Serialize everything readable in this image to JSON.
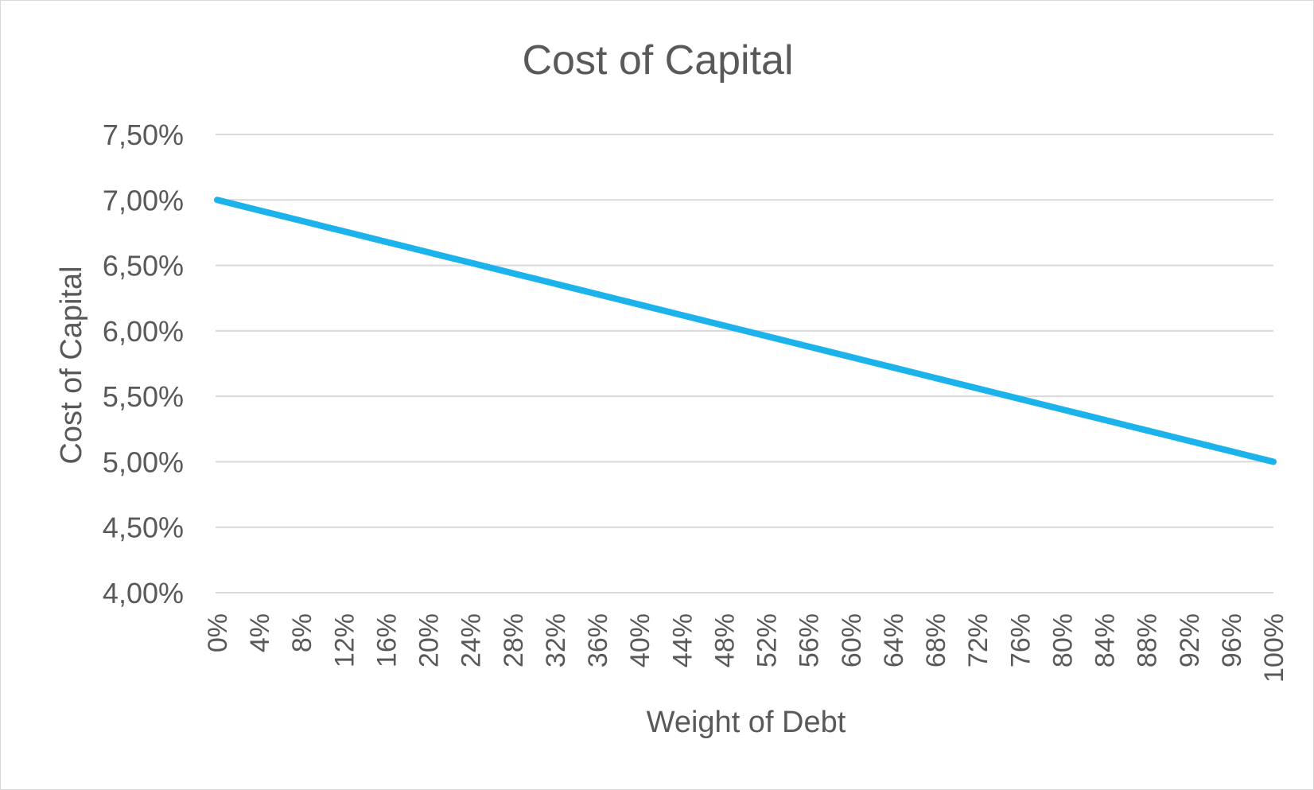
{
  "chart_data": {
    "type": "line",
    "title": "Cost of Capital",
    "xlabel": "Weight of Debt",
    "ylabel": "Cost of Capital",
    "x": [
      0,
      0.02,
      0.04,
      0.06,
      0.08,
      0.1,
      0.12,
      0.14,
      0.16,
      0.18,
      0.2,
      0.22,
      0.24,
      0.26,
      0.28,
      0.3,
      0.32,
      0.34,
      0.36,
      0.38,
      0.4,
      0.42,
      0.44,
      0.46,
      0.48,
      0.5,
      0.52,
      0.54,
      0.56,
      0.58,
      0.6,
      0.62,
      0.64,
      0.66,
      0.68,
      0.7,
      0.72,
      0.74,
      0.76,
      0.78,
      0.8,
      0.82,
      0.84,
      0.86,
      0.88,
      0.9,
      0.92,
      0.94,
      0.96,
      0.98,
      1.0
    ],
    "x_tick_labels": [
      "0%",
      "4%",
      "8%",
      "12%",
      "16%",
      "20%",
      "24%",
      "28%",
      "32%",
      "36%",
      "40%",
      "44%",
      "48%",
      "52%",
      "56%",
      "60%",
      "64%",
      "68%",
      "72%",
      "76%",
      "80%",
      "84%",
      "88%",
      "92%",
      "96%",
      "100%"
    ],
    "series": [
      {
        "color": "#1cb2ec",
        "values": [
          0.07,
          0.0696,
          0.0692,
          0.0688,
          0.0684,
          0.068,
          0.0676,
          0.0672,
          0.0668,
          0.0664,
          0.066,
          0.0656,
          0.0652,
          0.0648,
          0.0644,
          0.064,
          0.0636,
          0.0632,
          0.0628,
          0.0624,
          0.062,
          0.0616,
          0.0612,
          0.0608,
          0.0604,
          0.06,
          0.0596,
          0.0592,
          0.0588,
          0.0584,
          0.058,
          0.0576,
          0.0572,
          0.0568,
          0.0564,
          0.056,
          0.0556,
          0.0552,
          0.0548,
          0.0544,
          0.054,
          0.0536,
          0.0532,
          0.0528,
          0.0524,
          0.052,
          0.0516,
          0.0512,
          0.0508,
          0.0504,
          0.05
        ]
      }
    ],
    "y_ticks": [
      0.04,
      0.045,
      0.05,
      0.055,
      0.06,
      0.065,
      0.07,
      0.075
    ],
    "y_tick_labels": [
      "4,00%",
      "4,50%",
      "5,00%",
      "5,50%",
      "6,00%",
      "6,50%",
      "7,00%",
      "7,50%"
    ],
    "ylim": [
      0.04,
      0.075
    ],
    "grid": "horizontal",
    "legend": "none",
    "colors": {
      "gridline": "#d9d9d9",
      "text": "#595959",
      "border": "#d9d9d9"
    }
  }
}
